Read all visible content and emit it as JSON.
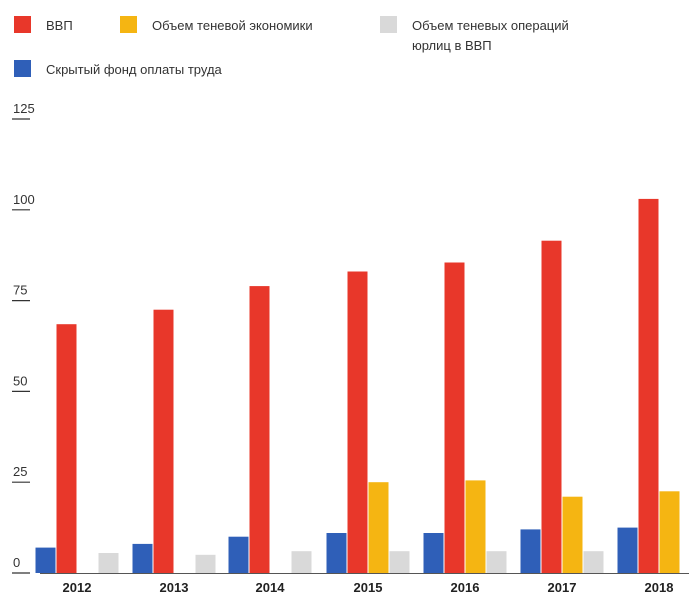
{
  "chart_data": {
    "type": "bar",
    "categories": [
      "2012",
      "2013",
      "2014",
      "2015",
      "2016",
      "2017",
      "2018"
    ],
    "series": [
      {
        "name": "Скрытый фонд оплаты труда",
        "color": "#2f5fb8",
        "values": [
          7,
          8,
          10,
          11,
          11,
          12,
          12.5
        ]
      },
      {
        "name": "ВВП",
        "color": "#e8372a",
        "values": [
          68.5,
          72.5,
          79,
          83,
          85.5,
          91.5,
          103
        ]
      },
      {
        "name": "Объем теневой экономики",
        "color": "#f5b512",
        "values": [
          null,
          null,
          null,
          25,
          25.5,
          21,
          22.5
        ]
      },
      {
        "name": "Объем теневых операций юрлиц в ВВП",
        "color": "#d9d9d9",
        "values": [
          5.5,
          5,
          6,
          6,
          6,
          6,
          null
        ]
      }
    ],
    "yticks": [
      0,
      25,
      50,
      75,
      100,
      125
    ],
    "ylim": [
      0,
      125
    ],
    "legend_position": "top",
    "grid": false
  },
  "legend": {
    "gdp": "ВВП",
    "shadow_economy": "Объем теневой экономики",
    "shadow_ops_line1": "Объем теневых операций",
    "shadow_ops_line2": "юрлиц в ВВП",
    "hidden_payroll": "Скрытый фонд оплаты труда"
  }
}
